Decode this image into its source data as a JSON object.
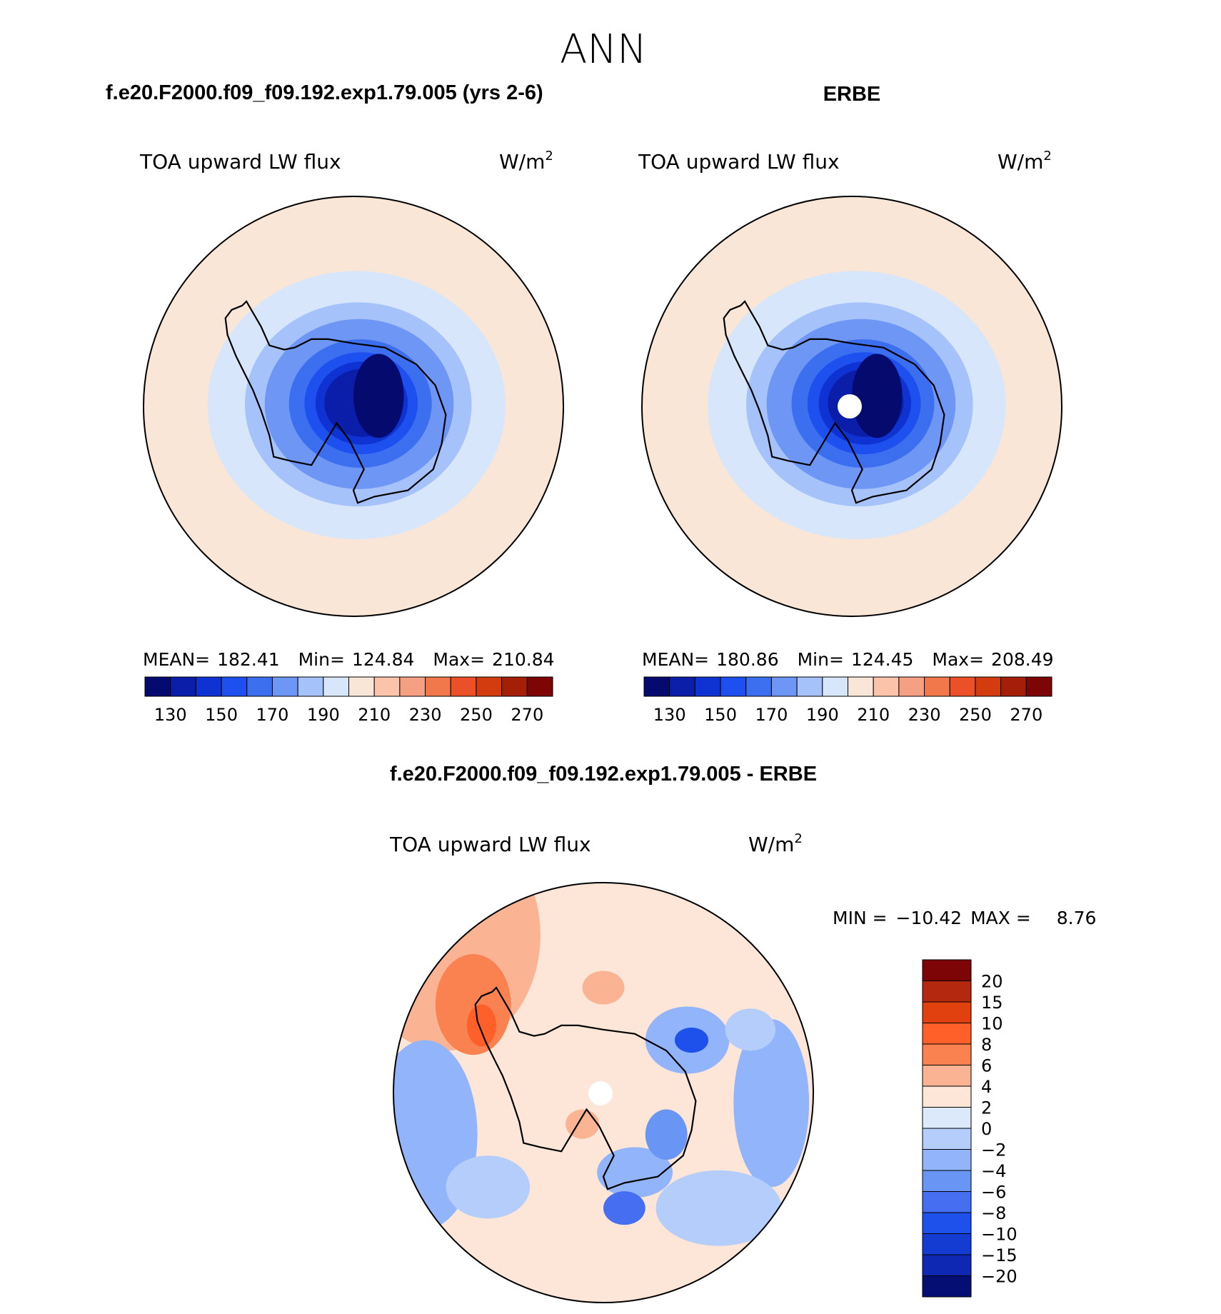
{
  "figure": {
    "season": "ANN",
    "panels": [
      {
        "case_title": "f.e20.F2000.f09_f09.192.exp1.79.005 (yrs 2-6)",
        "variable": "TOA upward LW flux",
        "units_base": "W/m",
        "units_sup": "2",
        "stats": {
          "mean_label": "MEAN=",
          "mean": "182.41",
          "min_label": "Min=",
          "min": "124.84",
          "max_label": "Max=",
          "max": "210.84"
        },
        "hole": false,
        "sector_offset": -28,
        "field": {
          "levels": [
            130,
            140,
            150,
            160,
            170,
            180,
            190,
            200
          ],
          "polar_value": 126
        }
      },
      {
        "case_title": "ERBE",
        "variable": "TOA upward LW flux",
        "units_base": "W/m",
        "units_sup": "2",
        "stats": {
          "mean_label": "MEAN=",
          "mean": "180.86",
          "min_label": "Min=",
          "min": "124.45",
          "max_label": "Max=",
          "max": "208.49"
        },
        "hole": true,
        "sector_offset": 14,
        "field": {
          "levels": [
            130,
            140,
            150,
            160,
            170,
            180,
            190,
            200
          ],
          "polar_value": 125
        }
      }
    ],
    "colorbar": {
      "colors": [
        "#050a6e",
        "#0a1eaa",
        "#0f32d2",
        "#1e50f0",
        "#3c6ef0",
        "#6e96f5",
        "#a5c3fa",
        "#d7e6fa",
        "#fae6d7",
        "#fac3aa",
        "#f5a082",
        "#f0784b",
        "#eb5028",
        "#d23c0f",
        "#a51e08",
        "#7d0505"
      ],
      "labels": [
        "130",
        "150",
        "170",
        "190",
        "210",
        "230",
        "250",
        "270"
      ]
    },
    "diff": {
      "title": "f.e20.F2000.f09_f09.192.exp1.79.005 - ERBE",
      "variable": "TOA upward LW flux",
      "units_base": "W/m",
      "units_sup": "2",
      "min_label": "MIN =",
      "min": "−10.42",
      "max_label": "MAX =",
      "max": "8.76",
      "colors": [
        "#7d0505",
        "#b4280f",
        "#e1410f",
        "#ff5f28",
        "#fa8250",
        "#fab493",
        "#fde6d7",
        "#dbe9fa",
        "#b4cdfa",
        "#91b4fa",
        "#6996f5",
        "#466ef0",
        "#1e50eb",
        "#143cd2",
        "#0f28b4",
        "#050f73"
      ],
      "labels": [
        "20",
        "15",
        "10",
        "8",
        "6",
        "4",
        "2",
        "0",
        "−2",
        "−4",
        "−6",
        "−8",
        "−10",
        "−15",
        "−20"
      ]
    }
  }
}
